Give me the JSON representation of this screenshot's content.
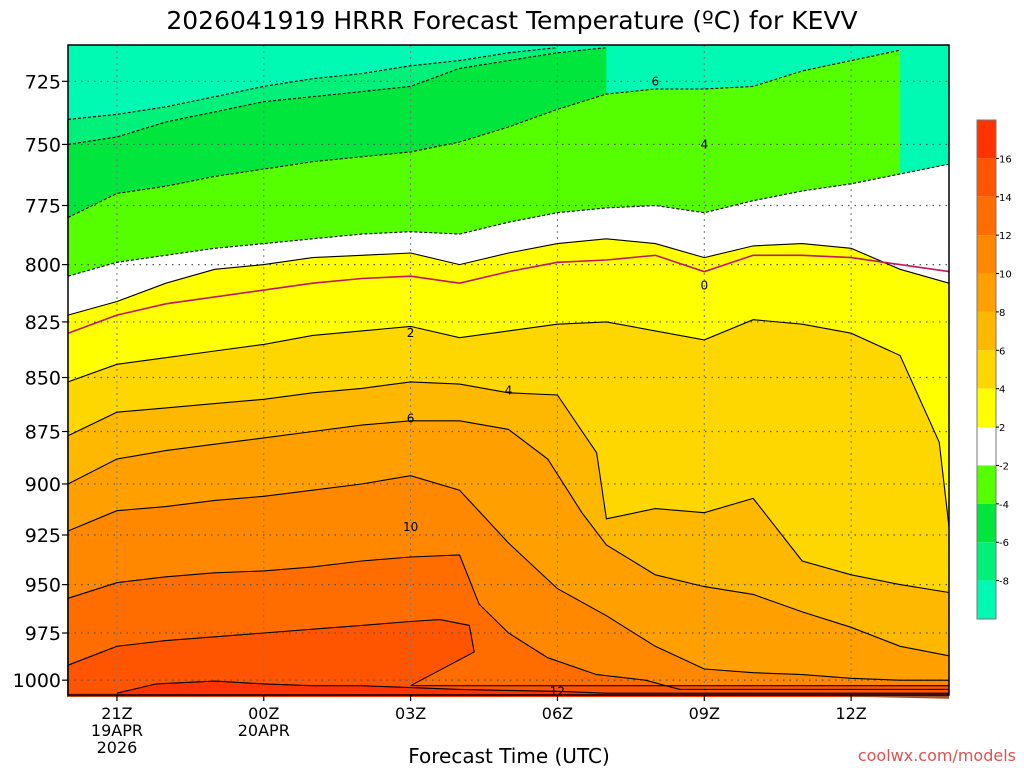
{
  "chart_data": {
    "type": "heatmap",
    "title": "2026041919 HRRR Forecast Temperature (ºC) for KEVV",
    "xlabel": "Forecast Time (UTC)",
    "ylabel": "",
    "credit": "coolwx.com/models",
    "x_ticks": [
      {
        "x": 21,
        "lines": [
          "21Z",
          "19APR",
          "2026"
        ]
      },
      {
        "x": 24,
        "lines": [
          "00Z",
          "20APR"
        ]
      },
      {
        "x": 27,
        "lines": [
          "03Z"
        ]
      },
      {
        "x": 30,
        "lines": [
          "06Z"
        ]
      },
      {
        "x": 33,
        "lines": [
          "09Z"
        ]
      },
      {
        "x": 36,
        "lines": [
          "12Z"
        ]
      }
    ],
    "xlim": [
      20,
      38
    ],
    "ylim": [
      1008,
      711
    ],
    "y_ticks": [
      725,
      750,
      775,
      800,
      825,
      850,
      875,
      900,
      925,
      950,
      975,
      1000
    ],
    "colorbar": {
      "ticks": [
        16,
        14,
        12,
        10,
        8,
        6,
        4,
        2,
        -2,
        -4,
        -6,
        -8
      ],
      "bands": [
        {
          "from": 16,
          "to": 18,
          "color": "#ff3300"
        },
        {
          "from": 14,
          "to": 16,
          "color": "#ff5500"
        },
        {
          "from": 12,
          "to": 14,
          "color": "#ff6d00"
        },
        {
          "from": 10,
          "to": 12,
          "color": "#ff8800"
        },
        {
          "from": 8,
          "to": 10,
          "color": "#ffa000"
        },
        {
          "from": 6,
          "to": 8,
          "color": "#ffb800"
        },
        {
          "from": 4,
          "to": 6,
          "color": "#ffd700"
        },
        {
          "from": 2,
          "to": 4,
          "color": "#ffff00"
        },
        {
          "from": -2,
          "to": 2,
          "color": "#ffffff"
        },
        {
          "from": -4,
          "to": -2,
          "color": "#55ff00"
        },
        {
          "from": -6,
          "to": -4,
          "color": "#00e63c"
        },
        {
          "from": -8,
          "to": -6,
          "color": "#00f07a"
        },
        {
          "from": -10,
          "to": -8,
          "color": "#00fab4"
        }
      ]
    },
    "ground_color": "#a0522d",
    "isotherms": [
      {
        "level": 16,
        "fill": "#ff3300",
        "style": "solid",
        "label": null,
        "points": [
          [
            21,
            1007
          ],
          [
            21.8,
            1002
          ],
          [
            23,
            1000.5
          ],
          [
            24,
            1002
          ],
          [
            25,
            1003
          ],
          [
            26,
            1003
          ],
          [
            27,
            1004
          ],
          [
            28,
            1005
          ],
          [
            29,
            1005.5
          ],
          [
            30,
            1006
          ],
          [
            31,
            1007
          ],
          [
            38,
            1007
          ]
        ]
      },
      {
        "level": 14,
        "fill": "#ff5500",
        "style": "solid",
        "label": null,
        "points": [
          [
            20,
            992
          ],
          [
            21,
            982
          ],
          [
            22,
            979
          ],
          [
            23,
            977
          ],
          [
            24,
            975
          ],
          [
            25,
            973
          ],
          [
            26,
            971
          ],
          [
            27,
            969
          ],
          [
            27.6,
            968
          ],
          [
            28.2,
            971
          ],
          [
            28.3,
            985
          ],
          [
            27.5,
            996
          ],
          [
            27,
            1003
          ],
          [
            38,
            1003
          ]
        ]
      },
      {
        "level": 12,
        "fill": "#ff6d00",
        "style": "solid",
        "label": "12",
        "label_at": [
          30,
          1006
        ],
        "points": [
          [
            20,
            957
          ],
          [
            21,
            949
          ],
          [
            22,
            946
          ],
          [
            23,
            944
          ],
          [
            24,
            943
          ],
          [
            25,
            941
          ],
          [
            26,
            938
          ],
          [
            27,
            936
          ],
          [
            28,
            935
          ],
          [
            28.4,
            960
          ],
          [
            29,
            975
          ],
          [
            29.8,
            988
          ],
          [
            30.8,
            997
          ],
          [
            31.8,
            1000
          ],
          [
            32.5,
            1005
          ],
          [
            38,
            1005
          ]
        ]
      },
      {
        "level": 10,
        "fill": "#ff8800",
        "style": "solid",
        "label": "10",
        "label_at": [
          27,
          921
        ],
        "points": [
          [
            20,
            923
          ],
          [
            21,
            913
          ],
          [
            22,
            911
          ],
          [
            23,
            908
          ],
          [
            24,
            906
          ],
          [
            25,
            903
          ],
          [
            26,
            900
          ],
          [
            27,
            896
          ],
          [
            28,
            903
          ],
          [
            29,
            929
          ],
          [
            30,
            952
          ],
          [
            31,
            966
          ],
          [
            32,
            982
          ],
          [
            33,
            994
          ],
          [
            34,
            996
          ],
          [
            35,
            997
          ],
          [
            36,
            999
          ],
          [
            37,
            1000
          ],
          [
            38,
            1000
          ]
        ]
      },
      {
        "level": 8,
        "fill": "#ffa000",
        "style": "solid",
        "label": null,
        "points": [
          [
            20,
            900
          ],
          [
            21,
            888
          ],
          [
            22,
            884
          ],
          [
            23,
            881
          ],
          [
            24,
            878
          ],
          [
            25,
            875
          ],
          [
            26,
            872
          ],
          [
            27,
            870
          ],
          [
            28,
            870
          ],
          [
            29,
            874
          ],
          [
            29.8,
            888
          ],
          [
            30.5,
            914
          ],
          [
            31,
            930
          ],
          [
            32,
            945
          ],
          [
            33,
            951
          ],
          [
            34,
            955
          ],
          [
            35,
            964
          ],
          [
            36,
            972
          ],
          [
            37,
            982
          ],
          [
            38,
            987
          ]
        ]
      },
      {
        "level": 6,
        "fill": "#ffb800",
        "style": "solid",
        "label": "6",
        "label_at": [
          27,
          869
        ],
        "points": [
          [
            20,
            877
          ],
          [
            21,
            866
          ],
          [
            22,
            864
          ],
          [
            23,
            862
          ],
          [
            24,
            860
          ],
          [
            25,
            857
          ],
          [
            26,
            855
          ],
          [
            27,
            852
          ],
          [
            28,
            853
          ],
          [
            29,
            857
          ],
          [
            30,
            858
          ],
          [
            30.8,
            885
          ],
          [
            31,
            917
          ],
          [
            32,
            912
          ],
          [
            33,
            914
          ],
          [
            34,
            907
          ],
          [
            35,
            938
          ],
          [
            36,
            945
          ],
          [
            37,
            950
          ],
          [
            38,
            954
          ]
        ]
      },
      {
        "level": 4,
        "fill": "#ffd700",
        "style": "solid",
        "label": "4",
        "label_at": [
          29,
          856
        ],
        "points": [
          [
            20,
            852
          ],
          [
            21,
            844
          ],
          [
            22,
            841
          ],
          [
            23,
            838
          ],
          [
            24,
            835
          ],
          [
            25,
            831
          ],
          [
            26,
            829
          ],
          [
            27,
            827
          ],
          [
            28,
            832
          ],
          [
            29,
            829
          ],
          [
            30,
            826
          ],
          [
            31,
            825
          ],
          [
            32,
            829
          ],
          [
            33,
            833
          ],
          [
            34,
            824
          ],
          [
            35,
            826
          ],
          [
            36,
            830
          ],
          [
            37,
            840
          ],
          [
            37.8,
            880
          ],
          [
            38,
            921
          ]
        ]
      },
      {
        "level": 2,
        "fill": "#ffff00",
        "style": "solid",
        "label": "2",
        "label_at": [
          27,
          830
        ],
        "points": [
          [
            20,
            822
          ],
          [
            21,
            816
          ],
          [
            22,
            808
          ],
          [
            23,
            802
          ],
          [
            24,
            800
          ],
          [
            25,
            797
          ],
          [
            26,
            796
          ],
          [
            27,
            795
          ],
          [
            28,
            800
          ],
          [
            29,
            795
          ],
          [
            30,
            791
          ],
          [
            31,
            789
          ],
          [
            32,
            791
          ],
          [
            33,
            797
          ],
          [
            34,
            792
          ],
          [
            35,
            791
          ],
          [
            36,
            793
          ],
          [
            37,
            802
          ],
          [
            38,
            808
          ]
        ]
      },
      {
        "level": -2,
        "fill": "#ffffff",
        "style": "dashed",
        "label": null,
        "points": [
          [
            20,
            805
          ],
          [
            21,
            799
          ],
          [
            22,
            796
          ],
          [
            23,
            793
          ],
          [
            24,
            791
          ],
          [
            25,
            789
          ],
          [
            26,
            787
          ],
          [
            27,
            786
          ],
          [
            28,
            787
          ],
          [
            29,
            782
          ],
          [
            30,
            778
          ],
          [
            31,
            776
          ],
          [
            32,
            775
          ],
          [
            33,
            778
          ],
          [
            34,
            773
          ],
          [
            35,
            769
          ],
          [
            36,
            766
          ],
          [
            37,
            762
          ],
          [
            38,
            758
          ]
        ]
      },
      {
        "level": -4,
        "fill": "#55ff00",
        "style": "dashed",
        "label": "4",
        "label_at": [
          33,
          750
        ],
        "points": [
          [
            20,
            780
          ],
          [
            21,
            770
          ],
          [
            22,
            767
          ],
          [
            23,
            763
          ],
          [
            24,
            760
          ],
          [
            25,
            757
          ],
          [
            26,
            755
          ],
          [
            27,
            753
          ],
          [
            28,
            749
          ],
          [
            29,
            743
          ],
          [
            30,
            736
          ],
          [
            31,
            730
          ],
          [
            32,
            728
          ],
          [
            33,
            728
          ],
          [
            34,
            727
          ],
          [
            35,
            721
          ],
          [
            36,
            717
          ],
          [
            37,
            713
          ]
        ]
      },
      {
        "level": -6,
        "fill": "#00e63c",
        "style": "dashed",
        "label": "6",
        "label_at": [
          32,
          725
        ],
        "points": [
          [
            20,
            750
          ],
          [
            21,
            747
          ],
          [
            22,
            741
          ],
          [
            23,
            737
          ],
          [
            24,
            733
          ],
          [
            25,
            731
          ],
          [
            26,
            729
          ],
          [
            27,
            727
          ],
          [
            28,
            720
          ],
          [
            29,
            717
          ],
          [
            30,
            714
          ],
          [
            31,
            712
          ]
        ]
      },
      {
        "level": -8,
        "fill": "#00f07a",
        "style": "dashed",
        "label": null,
        "points": [
          [
            20,
            740
          ],
          [
            21,
            738
          ],
          [
            22,
            735
          ],
          [
            23,
            731
          ],
          [
            24,
            727
          ],
          [
            25,
            724
          ],
          [
            26,
            722
          ],
          [
            27,
            719
          ],
          [
            28,
            717
          ],
          [
            29,
            714
          ],
          [
            30,
            712
          ]
        ]
      }
    ],
    "freezing_line": {
      "level": 0,
      "color": "#c2185b",
      "label": "0",
      "label_at": [
        33,
        809
      ],
      "points": [
        [
          20,
          830
        ],
        [
          21,
          822
        ],
        [
          22,
          817
        ],
        [
          23,
          814
        ],
        [
          24,
          811
        ],
        [
          25,
          808
        ],
        [
          26,
          806
        ],
        [
          27,
          805
        ],
        [
          28,
          808
        ],
        [
          29,
          803
        ],
        [
          30,
          799
        ],
        [
          31,
          798
        ],
        [
          32,
          796
        ],
        [
          33,
          803
        ],
        [
          34,
          796
        ],
        [
          35,
          796
        ],
        [
          36,
          797
        ],
        [
          37,
          800
        ],
        [
          38,
          803
        ]
      ]
    },
    "ground_profile": [
      [
        20,
        1009
      ],
      [
        32,
        1008
      ],
      [
        33,
        1008.5
      ],
      [
        35,
        1008
      ],
      [
        36,
        1009
      ],
      [
        38,
        1010
      ]
    ],
    "grid": true,
    "top_fill": "#00fab4"
  }
}
